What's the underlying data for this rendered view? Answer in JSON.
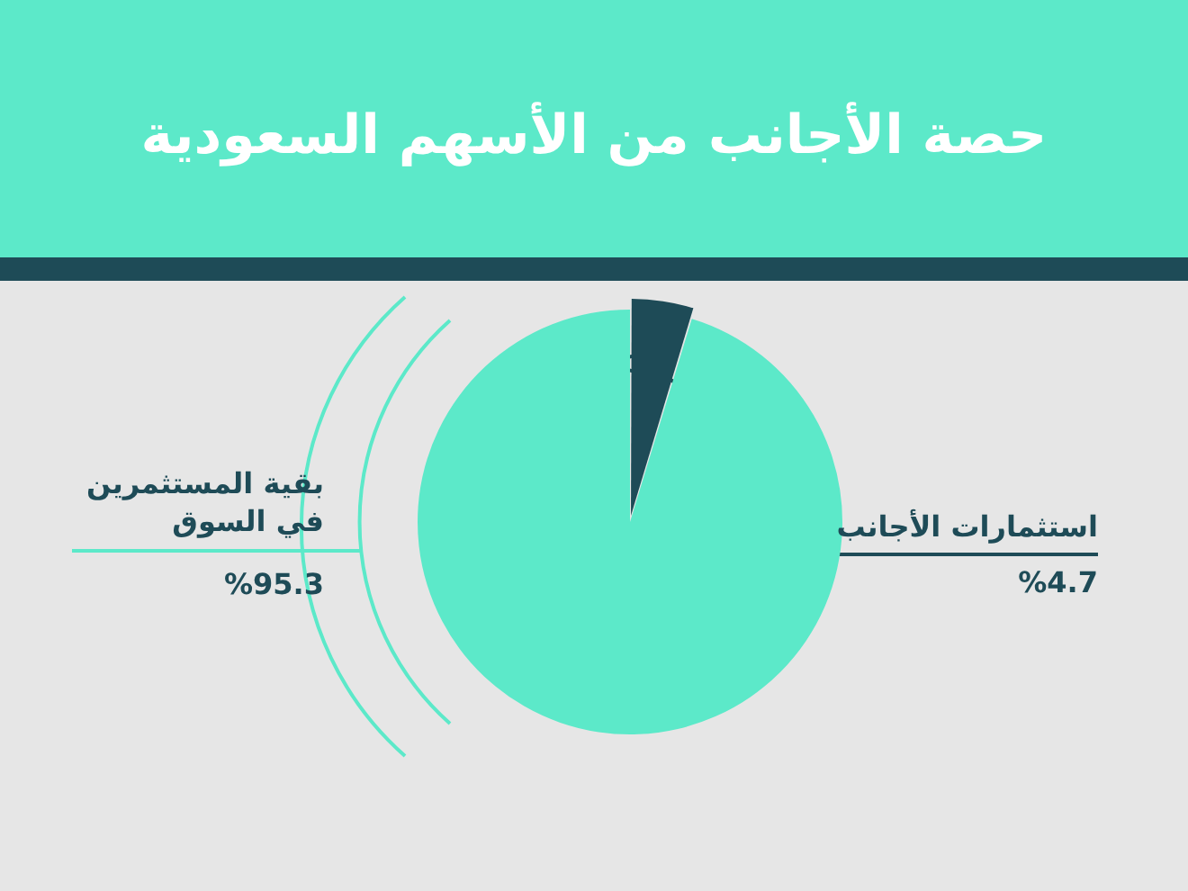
{
  "chart_data": {
    "type": "pie",
    "title": "حصة الأجانب من الأسهم السعودية",
    "categories": [
      "استثمارات الأجانب",
      "بقية المستثمرين في السوق"
    ],
    "values": [
      4.7,
      95.3
    ],
    "colors": [
      "#1e4b57",
      "#5ce9c9"
    ],
    "value_labels": [
      "%4.7",
      "%95.3"
    ],
    "legend": false
  }
}
